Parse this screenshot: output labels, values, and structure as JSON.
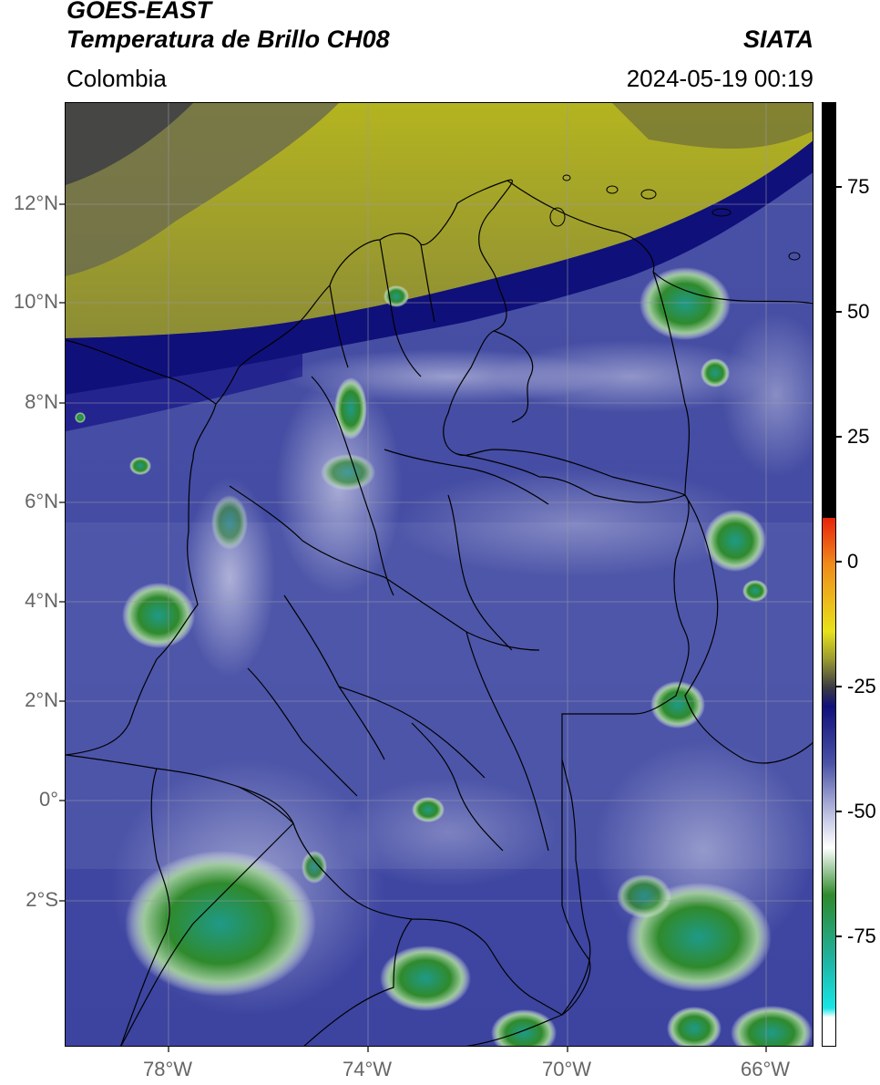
{
  "header": {
    "satellite": "GOES-EAST",
    "product": "Temperatura de Brillo CH08",
    "region": "Colombia",
    "agency": "SIATA",
    "datetime": "2024-05-19 00:19"
  },
  "map": {
    "lat_labels": [
      "12°N",
      "10°N",
      "8°N",
      "6°N",
      "4°N",
      "2°N",
      "0°",
      "2°S"
    ],
    "lon_labels": [
      "78°W",
      "74°W",
      "70°W",
      "66°W"
    ],
    "gridlines": true
  },
  "colorbar": {
    "labels": [
      "75",
      "50",
      "25",
      "0",
      "-25",
      "-50",
      "-75"
    ],
    "colors": {
      "black": "#000000",
      "red": "#e8220a",
      "orange": "#f08c1a",
      "yellow": "#e8e21a",
      "olive": "#9a9a30",
      "dark_gray": "#3a3a44",
      "navy": "#10107a",
      "blue_gray": "#4a52a6",
      "lavender": "#c8cbe6",
      "white": "#ffffff",
      "green": "#2f8a2c",
      "teal": "#1fb4a4",
      "cyan": "#17e6e6"
    }
  }
}
